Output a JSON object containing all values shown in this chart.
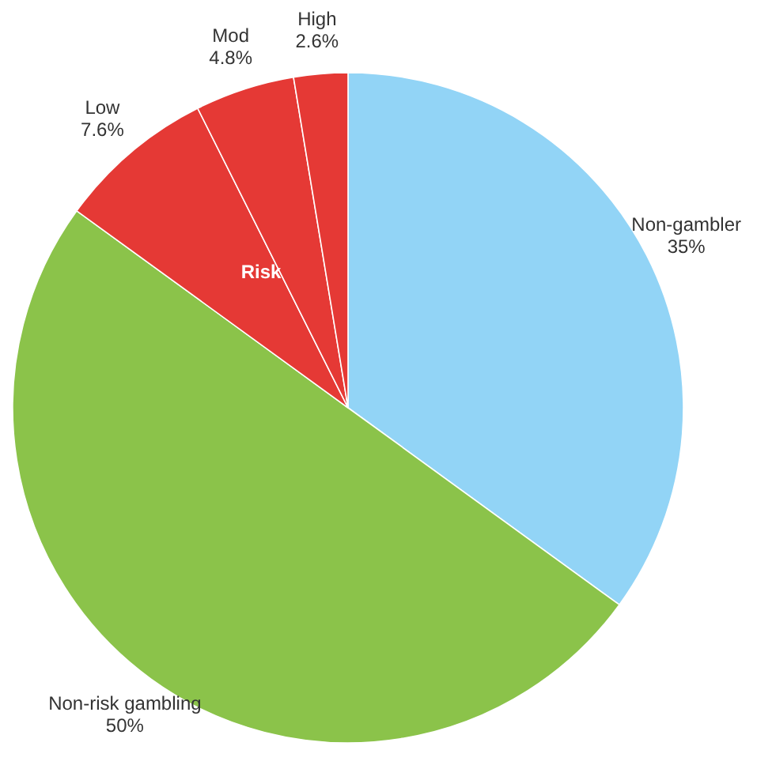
{
  "chart_data": {
    "type": "pie",
    "categories": [
      "Non-gambler",
      "Non-risk gambling",
      "Low",
      "Mod",
      "High"
    ],
    "values": [
      35,
      50,
      7.6,
      4.8,
      2.6
    ],
    "colors": [
      "#92d4f6",
      "#8bc34a",
      "#e53935",
      "#e53935",
      "#e53935"
    ],
    "value_labels": [
      "35%",
      "50%",
      "7.6%",
      "4.8%",
      "2.6%"
    ],
    "annotations": [
      "Risk"
    ]
  }
}
